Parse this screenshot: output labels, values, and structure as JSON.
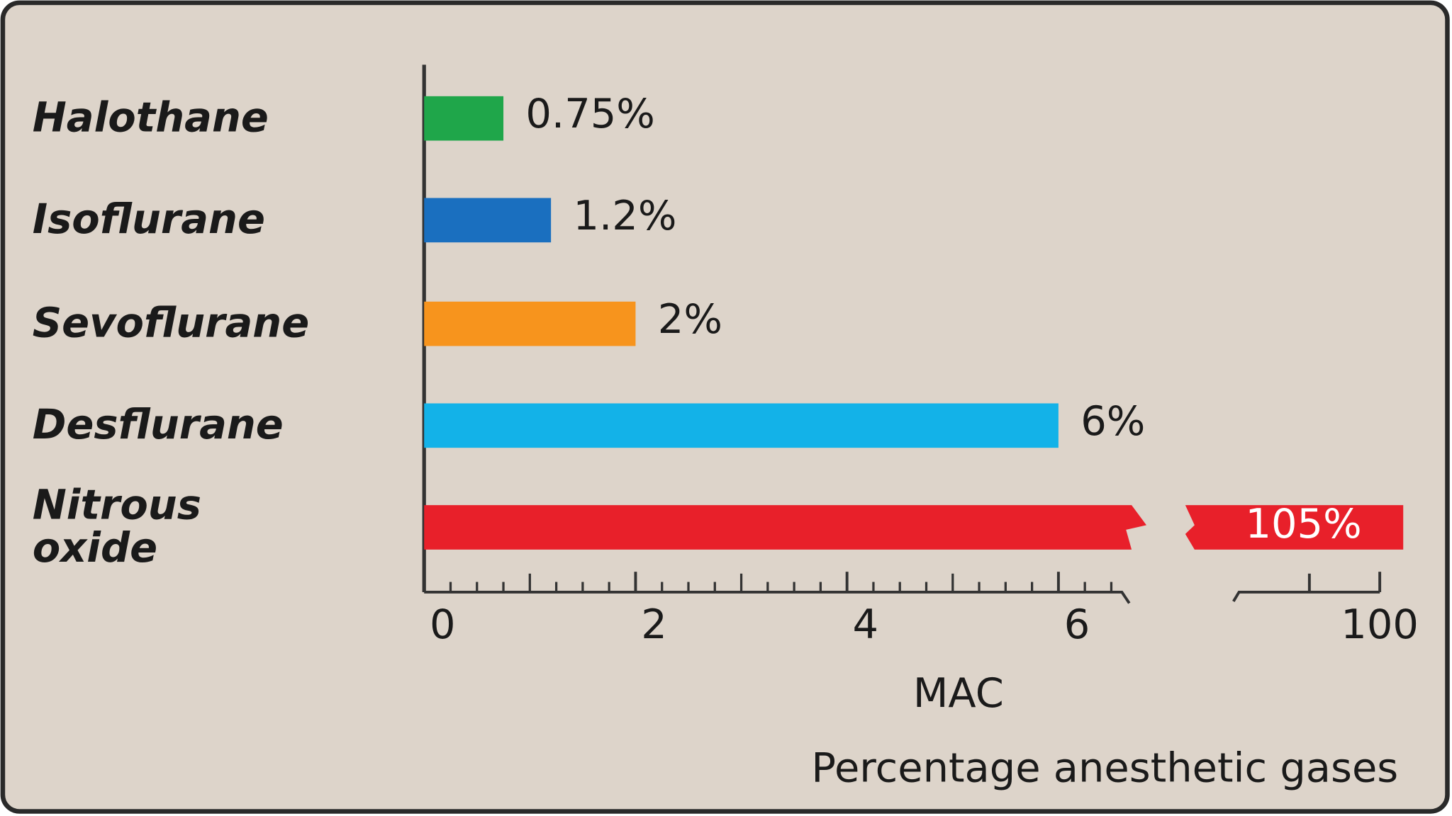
{
  "chart_data": {
    "type": "bar",
    "orientation": "horizontal",
    "categories": [
      "Halothane",
      "Isoflurane",
      "Sevoflurane",
      "Desflurane",
      "Nitrous oxide"
    ],
    "values": [
      0.75,
      1.2,
      2,
      6,
      105
    ],
    "value_labels": [
      "0.75%",
      "1.2%",
      "2%",
      "6%",
      "105%"
    ],
    "colors": [
      "#1fa64a",
      "#1a6fbf",
      "#f7941d",
      "#13b2e8",
      "#e8202a"
    ],
    "xlim": [
      0,
      6.6
    ],
    "xticks": [
      0,
      2,
      4,
      6
    ],
    "xminor_step": 0.25,
    "x2lim": [
      70,
      100
    ],
    "x2ticks": [
      100
    ],
    "x2minor_ticks": [
      85
    ],
    "xlabel": "MAC",
    "footer": "Percentage anesthetic gases"
  }
}
